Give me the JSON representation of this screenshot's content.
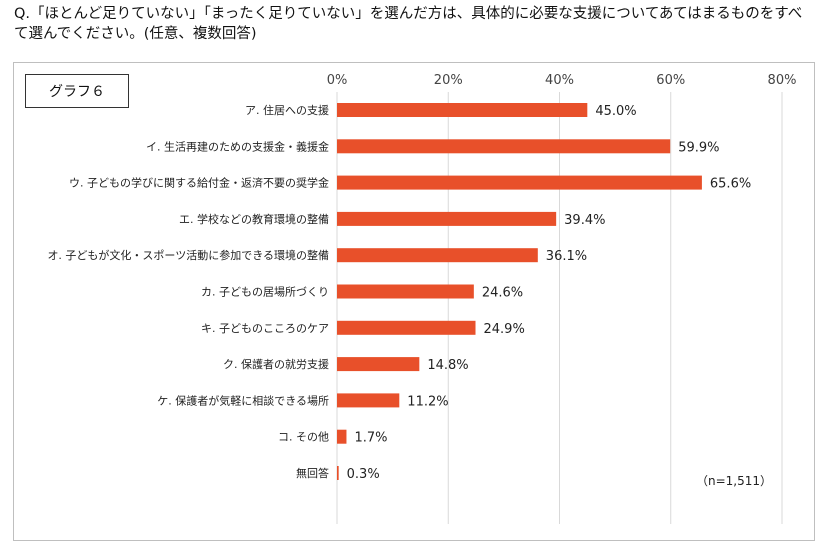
{
  "question": "Q.「ほとんど足りていない」「まったく足りていない」を選んだ方は、具体的に必要な支援についてあてはまるものをすべて選んでください。(任意、複数回答)",
  "graph_label": "グラフ６",
  "note": "（n=1,511）",
  "colors": {
    "bar": "#E8502A",
    "grid": "#d9d9d9",
    "text": "#222222"
  },
  "chart_data": {
    "type": "bar",
    "orientation": "horizontal",
    "categories": [
      "ア. 住居への支援",
      "イ. 生活再建のための支援金・義援金",
      "ウ. 子どもの学びに関する給付金・返済不要の奨学金",
      "エ. 学校などの教育環境の整備",
      "オ. 子どもが文化・スポーツ活動に参加できる環境の整備",
      "カ. 子どもの居場所づくり",
      "キ. 子どものこころのケア",
      "ク. 保護者の就労支援",
      "ケ. 保護者が気軽に相談できる場所",
      "コ. その他",
      "無回答"
    ],
    "values": [
      45.0,
      59.9,
      65.6,
      39.4,
      36.1,
      24.6,
      24.9,
      14.8,
      11.2,
      1.7,
      0.3
    ],
    "value_labels": [
      "45.0%",
      "59.9%",
      "65.6%",
      "39.4%",
      "36.1%",
      "24.6%",
      "24.9%",
      "14.8%",
      "11.2%",
      "1.7%",
      "0.3%"
    ],
    "xlim": [
      0,
      80
    ],
    "ticks": [
      0,
      20,
      40,
      60,
      80
    ],
    "tick_labels": [
      "0%",
      "20%",
      "40%",
      "60%",
      "80%"
    ],
    "title": "",
    "xlabel": "",
    "ylabel": "",
    "grid": true
  }
}
